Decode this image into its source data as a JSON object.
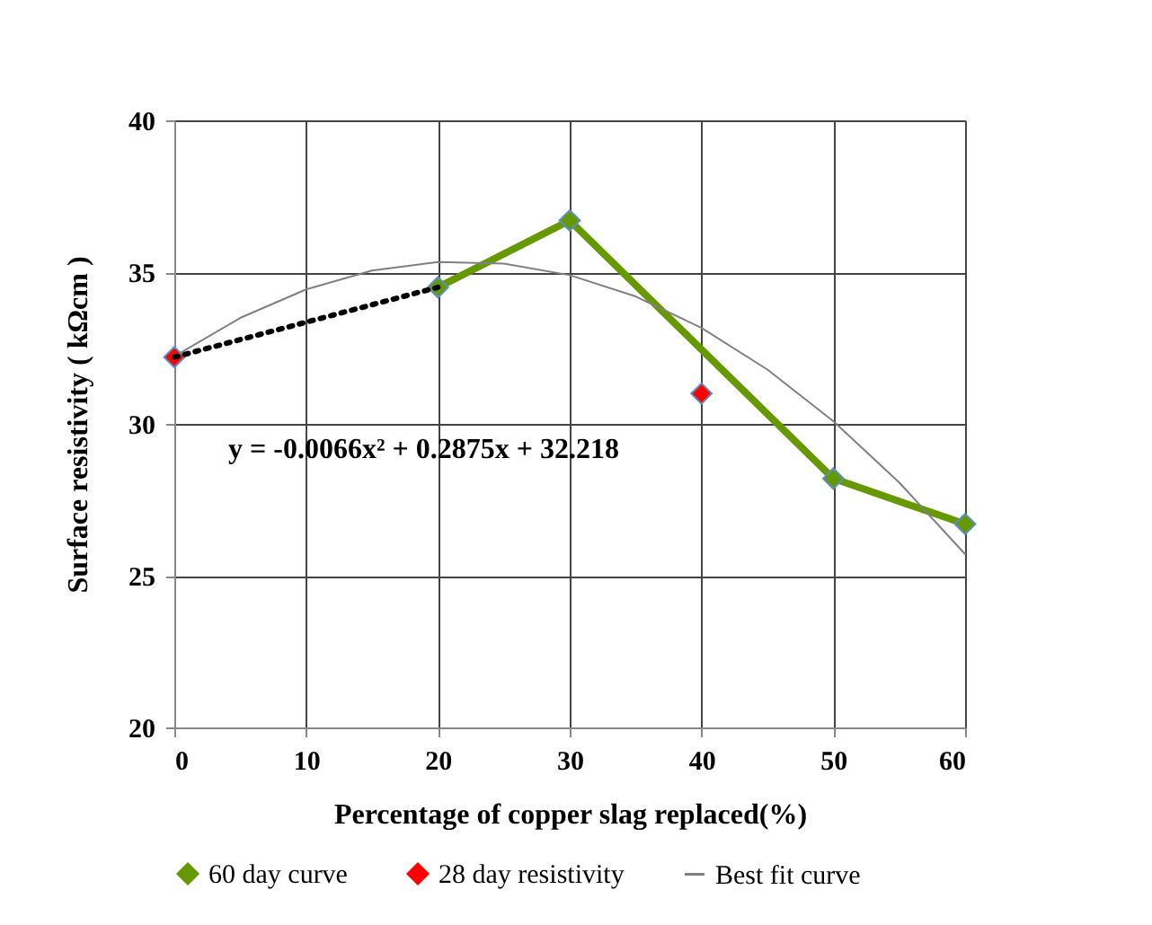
{
  "chart_data": {
    "type": "line",
    "xlabel": "Percentage  of copper slag replaced(%)",
    "ylabel": "Surface  resistivity  ( kΩcm )",
    "xlim": [
      0,
      60
    ],
    "xticks": [
      0,
      10,
      20,
      30,
      40,
      50,
      60
    ],
    "ylim": [
      20,
      40
    ],
    "yticks": [
      20,
      25,
      30,
      35,
      40
    ],
    "grid": true,
    "legend": "bottom",
    "annotations": [
      "y = -0.0066x² + 0.2875x + 32.218"
    ],
    "series": [
      {
        "name": "60 day curve",
        "type": "line",
        "color": "#669900",
        "marker": "diamond",
        "x": [
          20,
          30,
          50,
          60
        ],
        "values": [
          34.5,
          36.7,
          28.2,
          26.7
        ]
      },
      {
        "name": "28 day resistivity",
        "type": "scatter",
        "color": "#ff0000",
        "marker": "diamond",
        "x": [
          0,
          40
        ],
        "values": [
          32.2,
          31.0
        ]
      },
      {
        "name": "Best fit curve",
        "type": "line",
        "color": "#808080",
        "marker": "none",
        "x": [
          0,
          5,
          10,
          15,
          20,
          25,
          30,
          35,
          40,
          45,
          50,
          55,
          60
        ],
        "values": [
          32.22,
          33.49,
          34.43,
          35.05,
          35.33,
          35.28,
          34.9,
          34.2,
          33.16,
          31.79,
          30.09,
          28.07,
          25.71
        ]
      },
      {
        "type": "line",
        "color": "#000000",
        "line_style": "dotted",
        "x": [
          0,
          20
        ],
        "values": [
          32.2,
          34.5
        ]
      }
    ]
  }
}
